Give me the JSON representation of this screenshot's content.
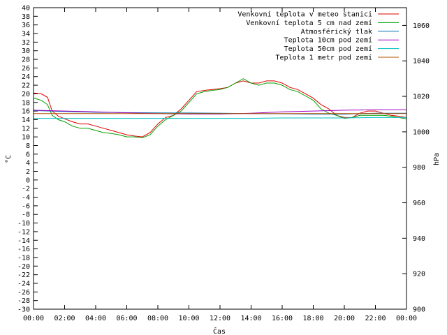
{
  "chart_data": {
    "type": "line",
    "xlabel": "Čas",
    "ylabel": "°C",
    "y2label": "hPa",
    "x_ticks": [
      "00:00",
      "02:00",
      "04:00",
      "06:00",
      "08:00",
      "10:00",
      "12:00",
      "14:00",
      "16:00",
      "18:00",
      "20:00",
      "22:00",
      "00:00"
    ],
    "x_range_hours": [
      0,
      24
    ],
    "ylim": [
      -30,
      40
    ],
    "y_ticks": [
      40,
      38,
      36,
      34,
      32,
      30,
      28,
      26,
      24,
      22,
      20,
      18,
      16,
      14,
      12,
      10,
      8,
      6,
      4,
      2,
      0,
      -2,
      -4,
      -6,
      -8,
      -10,
      -12,
      -14,
      -16,
      -18,
      -20,
      -22,
      -24,
      -26,
      -28,
      -30
    ],
    "y2lim": [
      900,
      1070
    ],
    "y2_ticks": [
      1060,
      1040,
      1020,
      1000,
      980,
      960,
      940,
      920,
      900
    ],
    "grid": false,
    "legend_placement": "top-right",
    "series": [
      {
        "name": "Venkovní teplota v meteo stanici",
        "color": "#e00000",
        "axis": "left",
        "x": [
          0,
          0.5,
          0.9,
          1.2,
          1.6,
          2.0,
          2.5,
          3.0,
          3.5,
          4.0,
          4.5,
          5.0,
          5.5,
          6.0,
          6.5,
          7.0,
          7.5,
          8.0,
          8.5,
          9.0,
          9.5,
          10.0,
          10.5,
          11.0,
          11.5,
          12.0,
          12.5,
          13.0,
          13.5,
          14.0,
          14.5,
          15.0,
          15.5,
          16.0,
          16.5,
          17.0,
          17.5,
          18.0,
          18.5,
          19.0,
          19.5,
          20.0,
          20.5,
          21.0,
          21.5,
          22.0,
          22.5,
          23.0,
          23.5,
          24.0
        ],
        "values": [
          20.2,
          20.0,
          19.2,
          16.0,
          14.8,
          14.2,
          13.5,
          13.0,
          13.0,
          12.5,
          12.0,
          11.5,
          11.0,
          10.5,
          10.2,
          10.0,
          11.0,
          13.0,
          14.5,
          15.0,
          16.5,
          18.5,
          20.5,
          20.8,
          21.0,
          21.2,
          21.5,
          22.5,
          23.0,
          22.5,
          22.5,
          23.0,
          23.0,
          22.5,
          21.5,
          21.0,
          20.0,
          19.0,
          17.5,
          16.5,
          15.0,
          14.5,
          14.5,
          15.5,
          16.0,
          16.0,
          15.5,
          15.0,
          14.8,
          14.5
        ]
      },
      {
        "name": "Venkovní teplota 5 cm nad zemí",
        "color": "#00a000",
        "axis": "left",
        "x": [
          0,
          0.5,
          0.9,
          1.2,
          1.6,
          2.0,
          2.5,
          3.0,
          3.5,
          4.0,
          4.5,
          5.0,
          5.5,
          6.0,
          6.5,
          7.0,
          7.5,
          8.0,
          8.5,
          9.0,
          9.5,
          10.0,
          10.5,
          11.0,
          11.5,
          12.0,
          12.5,
          13.0,
          13.5,
          14.0,
          14.5,
          15.0,
          15.5,
          16.0,
          16.5,
          17.0,
          17.5,
          18.0,
          18.5,
          19.0,
          19.5,
          20.0,
          20.5,
          21.0,
          21.5,
          22.0,
          22.5,
          23.0,
          23.5,
          24.0
        ],
        "values": [
          19.0,
          18.5,
          17.5,
          15.0,
          14.0,
          13.5,
          12.5,
          12.0,
          12.0,
          11.5,
          11.0,
          10.8,
          10.5,
          10.0,
          10.0,
          9.8,
          10.5,
          12.5,
          14.0,
          15.0,
          16.0,
          18.0,
          20.0,
          20.5,
          20.8,
          21.0,
          21.5,
          22.5,
          23.5,
          22.5,
          22.0,
          22.5,
          22.5,
          22.0,
          21.0,
          20.5,
          19.5,
          18.5,
          16.5,
          15.5,
          15.0,
          14.3,
          14.5,
          15.0,
          15.0,
          15.0,
          15.0,
          14.8,
          14.5,
          14.2
        ]
      },
      {
        "name": "Atmosférický tlak",
        "color": "#0070b0",
        "axis": "right",
        "x": [
          0,
          2,
          4,
          6,
          8,
          10,
          12,
          14,
          16,
          18,
          20,
          22,
          24
        ],
        "values": [
          1012,
          1011.5,
          1011,
          1010.8,
          1010.7,
          1010.6,
          1010.5,
          1010.3,
          1010.2,
          1010.0,
          1010.0,
          1010.5,
          1010.5
        ]
      },
      {
        "name": "Teplota 10cm pod zemí",
        "color": "#a000c0",
        "axis": "left",
        "x": [
          0,
          2,
          4,
          6,
          8,
          10,
          12,
          14,
          16,
          18,
          20,
          22,
          24
        ],
        "values": [
          16.2,
          16.0,
          15.8,
          15.6,
          15.4,
          15.3,
          15.3,
          15.5,
          15.8,
          16.0,
          16.2,
          16.3,
          16.3
        ]
      },
      {
        "name": "Teplota 50cm pod zemí",
        "color": "#00c0c0",
        "axis": "left",
        "x": [
          0,
          2,
          4,
          6,
          8,
          10,
          12,
          14,
          16,
          18,
          20,
          22,
          24
        ],
        "values": [
          14.3,
          14.3,
          14.3,
          14.3,
          14.3,
          14.3,
          14.3,
          14.3,
          14.4,
          14.4,
          14.4,
          14.5,
          14.5
        ]
      },
      {
        "name": "Teplota 1 metr pod zemí",
        "color": "#b05000",
        "axis": "left",
        "x": [
          0,
          2,
          4,
          6,
          8,
          10,
          12,
          14,
          16,
          18,
          20,
          22,
          24
        ],
        "values": [
          15.4,
          15.4,
          15.4,
          15.4,
          15.4,
          15.4,
          15.4,
          15.4,
          15.4,
          15.4,
          15.4,
          15.4,
          15.4
        ]
      }
    ]
  }
}
